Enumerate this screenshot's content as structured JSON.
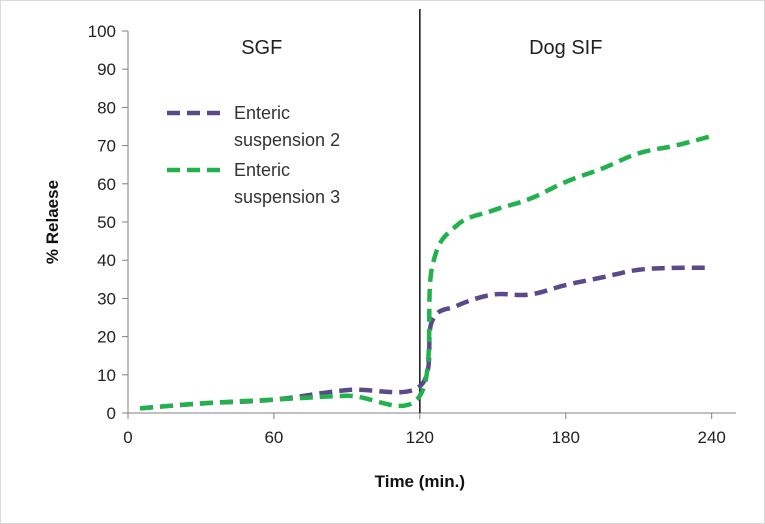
{
  "chart_data": {
    "type": "line",
    "title": "",
    "xlabel": "Time (min.)",
    "ylabel": "% Relaese",
    "xlim": [
      0,
      250
    ],
    "ylim": [
      0,
      100
    ],
    "x_ticks": [
      0,
      60,
      120,
      180,
      240
    ],
    "y_ticks": [
      0,
      10,
      20,
      30,
      40,
      50,
      60,
      70,
      80,
      90,
      100
    ],
    "grid": false,
    "divider_x": 120,
    "regions": [
      {
        "label": "SGF",
        "x_center": 55
      },
      {
        "label": "Dog SIF",
        "x_center": 180
      }
    ],
    "legend_position": "upper-left",
    "series": [
      {
        "name": "Enteric suspension 2",
        "name_lines": [
          "Enteric",
          "suspension 2"
        ],
        "color": "#5b4a8a",
        "dash": "dashed",
        "x": [
          5,
          30,
          60,
          90,
          120,
          125,
          135,
          150,
          165,
          180,
          195,
          210,
          225,
          240
        ],
        "y": [
          1.2,
          2.5,
          3.5,
          6,
          7,
          24,
          28,
          31,
          31,
          33.5,
          35.5,
          37.5,
          38,
          38
        ]
      },
      {
        "name": "Enteric suspension 3",
        "name_lines": [
          "Enteric",
          "suspension 3"
        ],
        "color": "#22b14c",
        "dash": "dashed",
        "x": [
          5,
          30,
          60,
          90,
          120,
          125,
          135,
          150,
          165,
          180,
          195,
          210,
          225,
          240
        ],
        "y": [
          1.2,
          2.5,
          3.5,
          4.5,
          4.5,
          38,
          49,
          53,
          56,
          60.5,
          64,
          68,
          70,
          72.5
        ]
      }
    ]
  }
}
